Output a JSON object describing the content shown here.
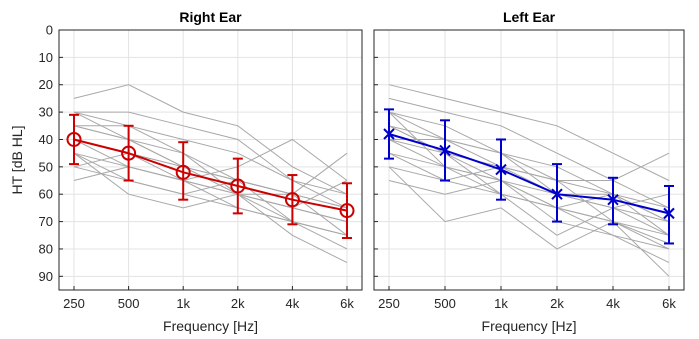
{
  "chart_data": [
    {
      "type": "line",
      "title": "Right Ear",
      "xlabel": "Frequency [Hz]",
      "ylabel": "HT [dB HL]",
      "x_categories": [
        "250",
        "500",
        "1k",
        "2k",
        "4k",
        "6k"
      ],
      "ylim": [
        0,
        95
      ],
      "y_reversed": true,
      "yticks": [
        0,
        10,
        20,
        30,
        40,
        50,
        60,
        70,
        80,
        90
      ],
      "grid": true,
      "mean_series": {
        "color": "#cc0000",
        "marker": "circle",
        "values": [
          40,
          45,
          52,
          57,
          62,
          66
        ],
        "error": [
          [
            31,
            49
          ],
          [
            35,
            55
          ],
          [
            41,
            62
          ],
          [
            47,
            67
          ],
          [
            53,
            71
          ],
          [
            56,
            76
          ]
        ]
      },
      "individual_series_color": "#a8a8a8",
      "individual_series": [
        [
          25,
          20,
          30,
          35,
          50,
          60
        ],
        [
          30,
          30,
          35,
          40,
          55,
          65
        ],
        [
          35,
          40,
          45,
          55,
          60,
          65
        ],
        [
          40,
          45,
          50,
          60,
          65,
          70
        ],
        [
          45,
          50,
          55,
          60,
          65,
          70
        ],
        [
          30,
          40,
          50,
          55,
          60,
          75
        ],
        [
          50,
          55,
          60,
          65,
          70,
          75
        ],
        [
          55,
          50,
          55,
          60,
          70,
          80
        ],
        [
          40,
          45,
          55,
          50,
          40,
          55
        ],
        [
          35,
          35,
          45,
          60,
          60,
          45
        ],
        [
          45,
          55,
          60,
          55,
          60,
          65
        ],
        [
          50,
          45,
          50,
          55,
          70,
          75
        ],
        [
          30,
          35,
          40,
          45,
          55,
          60
        ],
        [
          45,
          60,
          65,
          60,
          75,
          85
        ],
        [
          40,
          50,
          55,
          65,
          70,
          75
        ],
        [
          35,
          40,
          50,
          60,
          65,
          55
        ]
      ]
    },
    {
      "type": "line",
      "title": "Left Ear",
      "xlabel": "Frequency [Hz]",
      "ylabel": "",
      "x_categories": [
        "250",
        "500",
        "1k",
        "2k",
        "4k",
        "6k"
      ],
      "ylim": [
        0,
        95
      ],
      "y_reversed": true,
      "grid": true,
      "mean_series": {
        "color": "#0000cc",
        "marker": "x",
        "values": [
          38,
          44,
          51,
          60,
          62,
          67
        ],
        "error": [
          [
            29,
            47
          ],
          [
            33,
            55
          ],
          [
            40,
            62
          ],
          [
            49,
            70
          ],
          [
            54,
            71
          ],
          [
            57,
            78
          ]
        ]
      },
      "individual_series_color": "#a8a8a8",
      "individual_series": [
        [
          20,
          25,
          30,
          35,
          45,
          55
        ],
        [
          25,
          30,
          35,
          45,
          55,
          65
        ],
        [
          30,
          35,
          45,
          55,
          60,
          70
        ],
        [
          35,
          40,
          50,
          60,
          65,
          75
        ],
        [
          40,
          45,
          55,
          65,
          70,
          80
        ],
        [
          45,
          55,
          60,
          65,
          70,
          75
        ],
        [
          50,
          70,
          65,
          80,
          70,
          90
        ],
        [
          55,
          60,
          55,
          70,
          75,
          85
        ],
        [
          30,
          50,
          55,
          60,
          60,
          65
        ],
        [
          35,
          45,
          50,
          55,
          55,
          45
        ],
        [
          40,
          40,
          45,
          60,
          65,
          70
        ],
        [
          45,
          50,
          60,
          65,
          60,
          75
        ],
        [
          50,
          55,
          50,
          55,
          70,
          78
        ],
        [
          35,
          45,
          60,
          75,
          65,
          60
        ],
        [
          40,
          50,
          55,
          65,
          75,
          80
        ],
        [
          30,
          40,
          45,
          50,
          60,
          70
        ]
      ]
    }
  ]
}
